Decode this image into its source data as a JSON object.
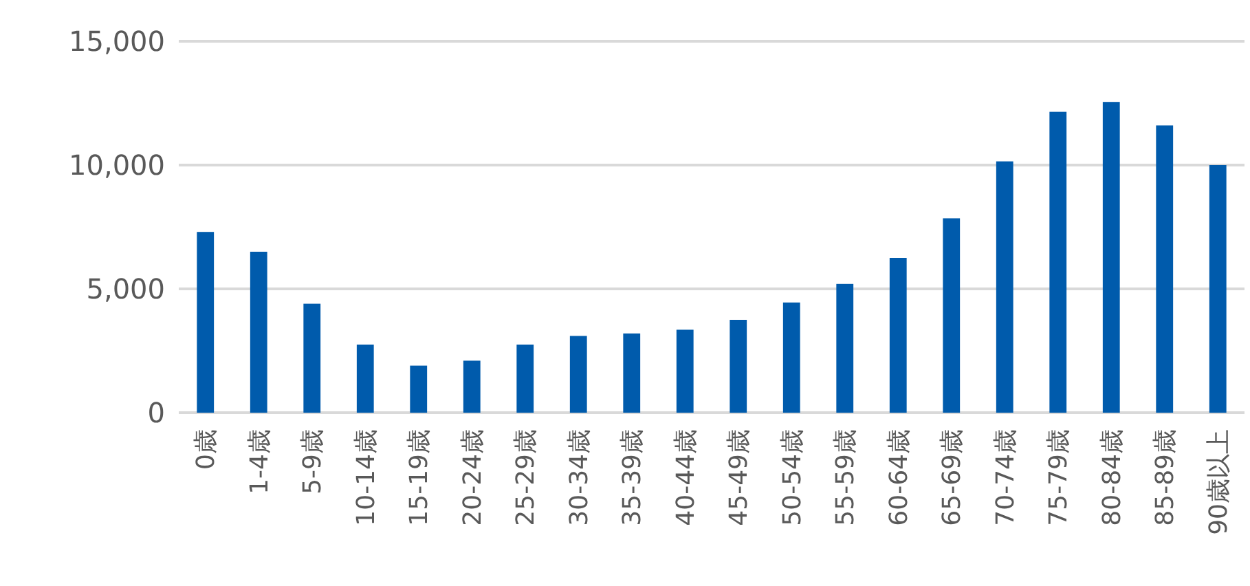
{
  "chart_data": {
    "type": "bar",
    "categories": [
      "0歳",
      "1-4歳",
      "5-9歳",
      "10-14歳",
      "15-19歳",
      "20-24歳",
      "25-29歳",
      "30-34歳",
      "35-39歳",
      "40-44歳",
      "45-49歳",
      "50-54歳",
      "55-59歳",
      "60-64歳",
      "65-69歳",
      "70-74歳",
      "75-79歳",
      "80-84歳",
      "85-89歳",
      "90歳以上"
    ],
    "values": [
      7300,
      6500,
      4400,
      2750,
      1900,
      2100,
      2750,
      3100,
      3200,
      3350,
      3750,
      4450,
      5200,
      6250,
      7850,
      10150,
      12150,
      12550,
      11600,
      10000
    ],
    "color": "#005bac",
    "ylim": [
      0,
      15000
    ],
    "yticks": [
      {
        "value": 0,
        "label": "0"
      },
      {
        "value": 5000,
        "label": "5,000"
      },
      {
        "value": 10000,
        "label": "10,000"
      },
      {
        "value": 15000,
        "label": "15,000"
      }
    ],
    "grid": "y"
  }
}
